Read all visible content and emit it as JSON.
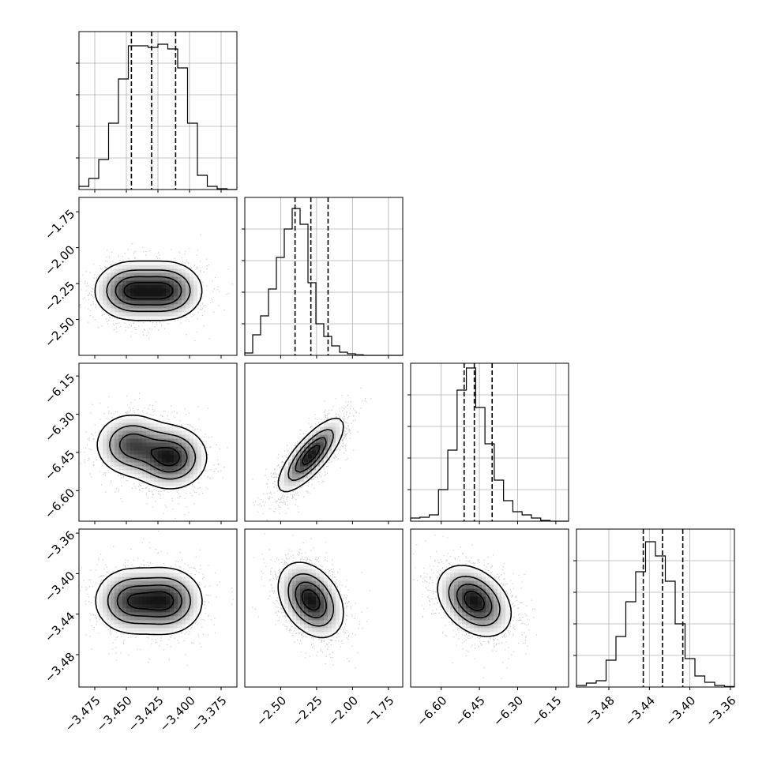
{
  "chart_data": {
    "type": "corner",
    "grid": true,
    "params": [
      {
        "range": [
          -3.4875,
          -3.3625
        ],
        "ticks": [
          -3.475,
          -3.45,
          -3.425,
          -3.4,
          -3.375
        ],
        "tick_labels": [
          "−3.475",
          "−3.450",
          "−3.425",
          "−3.400",
          "−3.375"
        ],
        "quantiles": [
          -3.446,
          -3.43,
          -3.411
        ]
      },
      {
        "range": [
          -2.75,
          -1.65
        ],
        "ticks": [
          -2.5,
          -2.25,
          -2.0,
          -1.75
        ],
        "tick_labels": [
          "−2.50",
          "−2.25",
          "−2.00",
          "−1.75"
        ],
        "quantiles": [
          -2.4,
          -2.29,
          -2.17
        ]
      },
      {
        "range": [
          -6.72,
          -6.1
        ],
        "ticks": [
          -6.6,
          -6.45,
          -6.3,
          -6.15
        ],
        "tick_labels": [
          "−6.60",
          "−6.45",
          "−6.30",
          "−6.15"
        ],
        "quantiles": [
          -6.51,
          -6.47,
          -6.4
        ]
      },
      {
        "range": [
          -3.512,
          -3.356
        ],
        "ticks": [
          -3.48,
          -3.44,
          -3.4,
          -3.36
        ],
        "tick_labels": [
          "−3.48",
          "−3.44",
          "−3.40",
          "−3.36"
        ],
        "quantiles": [
          -3.446,
          -3.427,
          -3.407
        ]
      }
    ],
    "histograms": [
      {
        "counts": [
          0.02,
          0.07,
          0.19,
          0.42,
          0.7,
          0.91,
          0.91,
          0.9,
          0.92,
          0.89,
          0.77,
          0.42,
          0.09,
          0.02,
          0.005,
          0
        ]
      },
      {
        "counts": [
          0.015,
          0.13,
          0.25,
          0.42,
          0.62,
          0.8,
          0.93,
          0.83,
          0.46,
          0.2,
          0.12,
          0.06,
          0.02,
          0.01,
          0.004,
          0,
          0,
          0,
          0,
          0
        ]
      },
      {
        "counts": [
          0.02,
          0.025,
          0.04,
          0.2,
          0.45,
          0.83,
          0.97,
          0.72,
          0.49,
          0.26,
          0.13,
          0.06,
          0.04,
          0.02,
          0.005,
          0,
          0
        ]
      },
      {
        "counts": [
          0.01,
          0.025,
          0.04,
          0.17,
          0.32,
          0.54,
          0.73,
          0.92,
          0.83,
          0.67,
          0.4,
          0.18,
          0.07,
          0.03,
          0.01,
          0.003
        ]
      }
    ],
    "pairs": [
      {
        "x": 0,
        "y": 1,
        "modes": [
          [
            -3.447,
            -2.3,
            1.0
          ],
          [
            -3.418,
            -2.3,
            1.0
          ]
        ],
        "sx": 0.014,
        "sy": 0.1,
        "corr": 0
      },
      {
        "x": 0,
        "y": 2,
        "modes": [
          [
            -3.415,
            -6.47,
            1.0
          ],
          [
            -3.446,
            -6.42,
            0.8
          ]
        ],
        "sx": 0.014,
        "sy": 0.06,
        "corr": 0
      },
      {
        "x": 1,
        "y": 2,
        "modes": [
          [
            -2.29,
            -6.46,
            1.0
          ]
        ],
        "sx": 0.11,
        "sy": 0.07,
        "corr": 0.78
      },
      {
        "x": 0,
        "y": 3,
        "modes": [
          [
            -3.418,
            -3.427,
            1.0
          ],
          [
            -3.447,
            -3.427,
            0.9
          ]
        ],
        "sx": 0.014,
        "sy": 0.016,
        "corr": 0
      },
      {
        "x": 1,
        "y": 3,
        "modes": [
          [
            -2.29,
            -3.426,
            1.0
          ]
        ],
        "sx": 0.11,
        "sy": 0.018,
        "corr": -0.35
      },
      {
        "x": 2,
        "y": 3,
        "modes": [
          [
            -6.47,
            -3.427,
            1.0
          ]
        ],
        "sx": 0.07,
        "sy": 0.017,
        "corr": -0.35
      }
    ]
  }
}
